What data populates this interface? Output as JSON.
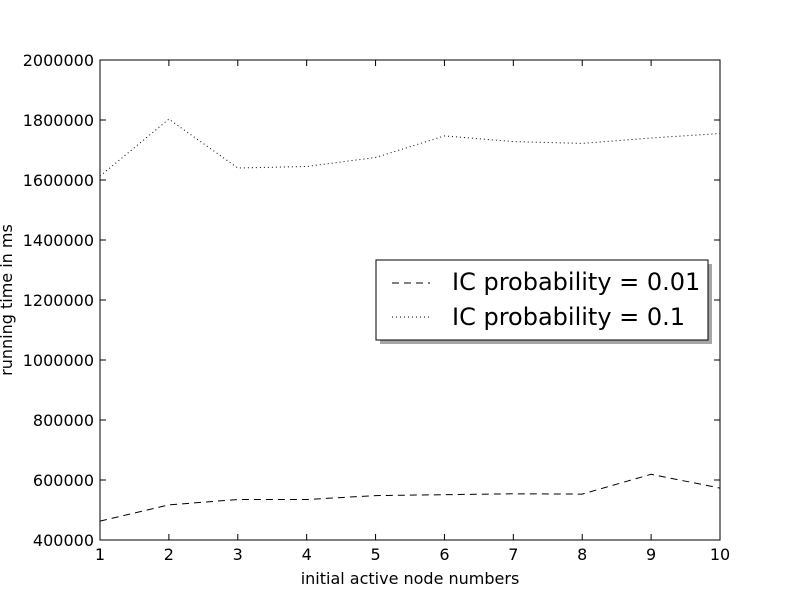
{
  "chart_data": {
    "type": "line",
    "title": "",
    "xlabel": "initial active node numbers",
    "ylabel": "running time in ms",
    "x": [
      1,
      2,
      3,
      4,
      5,
      6,
      7,
      8,
      9,
      10
    ],
    "xlim": [
      1,
      10
    ],
    "ylim": [
      400000,
      2000000
    ],
    "xticks": [
      1,
      2,
      3,
      4,
      5,
      6,
      7,
      8,
      9,
      10
    ],
    "xtick_labels": [
      "1",
      "2",
      "3",
      "4",
      "5",
      "6",
      "7",
      "8",
      "9",
      "10"
    ],
    "yticks": [
      400000,
      600000,
      800000,
      1000000,
      1200000,
      1400000,
      1600000,
      1800000,
      2000000
    ],
    "ytick_labels": [
      "400000",
      "600000",
      "800000",
      "1000000",
      "1200000",
      "1400000",
      "1600000",
      "1800000",
      "2000000"
    ],
    "grid": false,
    "legend_position": "center-right",
    "series": [
      {
        "name": "IC probability = 0.01",
        "line_style": "dashed",
        "color": "#000000",
        "values": [
          463000,
          517000,
          535000,
          535000,
          548000,
          551000,
          554000,
          553000,
          619000,
          573000
        ]
      },
      {
        "name": "IC probability = 0.1",
        "line_style": "dotted",
        "color": "#000000",
        "values": [
          1613000,
          1803000,
          1640000,
          1645000,
          1675000,
          1747000,
          1728000,
          1722000,
          1740000,
          1755000
        ]
      }
    ]
  }
}
